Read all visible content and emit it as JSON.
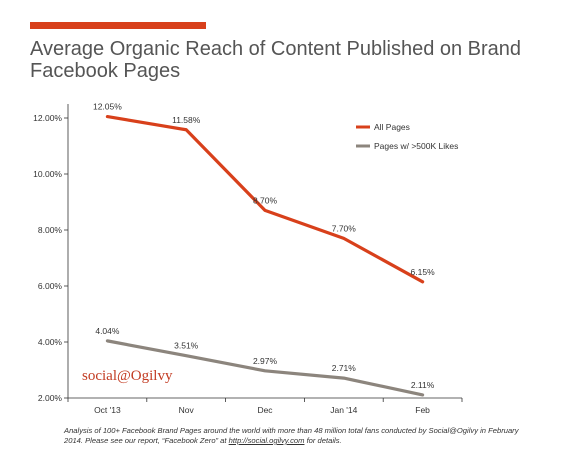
{
  "title": "Average Organic Reach of Content Published on Brand Facebook Pages",
  "brand": "social@Ogilvy",
  "footnote": {
    "text_before": "Analysis of 100+ Facebook Brand Pages around the world with more than 48 million total fans conducted by Social@Ogilvy in February 2014. Please see our report, “Facebook Zero” at ",
    "link": "http://social.ogilvy.com",
    "text_after": " for details."
  },
  "colors": {
    "accent": "#d8401b",
    "all_pages": "#d8401b",
    "large_pages": "#8c857d",
    "grid": "#cccccc",
    "brand": "#c23b22"
  },
  "chart_data": {
    "type": "line",
    "categories": [
      "Oct '13",
      "Nov",
      "Dec",
      "Jan '14",
      "Feb"
    ],
    "series": [
      {
        "name": "All Pages",
        "values": [
          12.05,
          11.58,
          8.7,
          7.7,
          6.15
        ],
        "labels": [
          "12.05%",
          "11.58%",
          "8.70%",
          "7.70%",
          "6.15%"
        ]
      },
      {
        "name": "Pages w/ >500K Likes",
        "values": [
          4.04,
          3.51,
          2.97,
          2.71,
          2.11
        ],
        "labels": [
          "4.04%",
          "3.51%",
          "2.97%",
          "2.71%",
          "2.11%"
        ]
      }
    ],
    "yticks": [
      "2.00%",
      "4.00%",
      "6.00%",
      "8.00%",
      "10.00%",
      "12.00%"
    ],
    "ytick_values": [
      2,
      4,
      6,
      8,
      10,
      12
    ],
    "ylim": [
      2,
      12.5
    ],
    "grid": false,
    "legend_position": "top-right"
  }
}
